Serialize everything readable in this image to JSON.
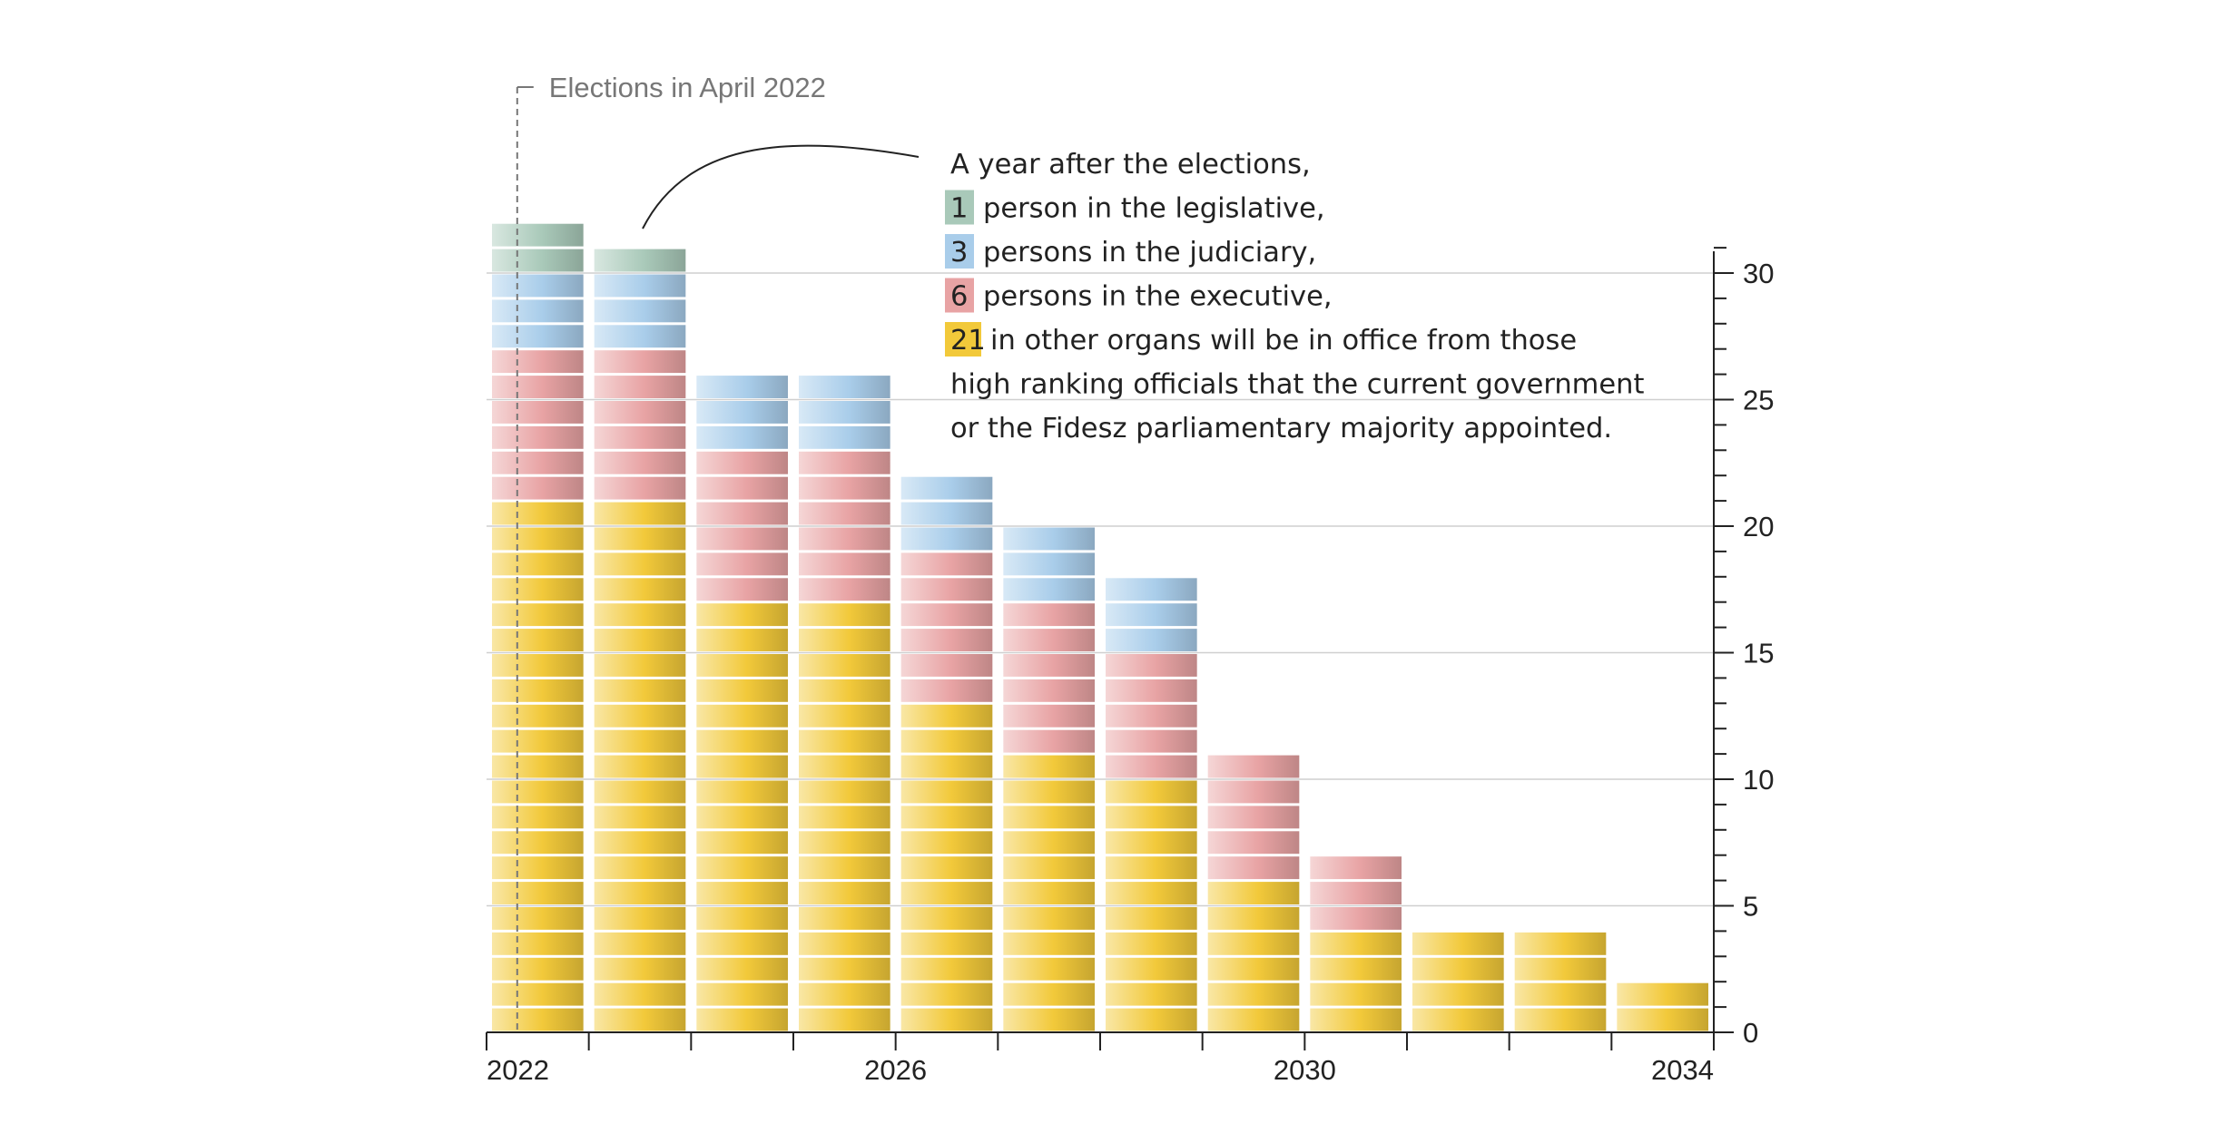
{
  "chart_data": {
    "type": "bar",
    "stacked": true,
    "unit_blocks": true,
    "x": [
      2022,
      2023,
      2024,
      2025,
      2026,
      2027,
      2028,
      2029,
      2030,
      2031,
      2032,
      2033
    ],
    "series": [
      {
        "key": "other",
        "color": "#f2c93a",
        "values": [
          21,
          21,
          17,
          17,
          13,
          11,
          10,
          6,
          4,
          4,
          4,
          2
        ]
      },
      {
        "key": "executive",
        "color": "#e8a3a4",
        "values": [
          6,
          6,
          6,
          6,
          6,
          6,
          5,
          5,
          3,
          0,
          0,
          0
        ]
      },
      {
        "key": "judiciary",
        "color": "#a9cdea",
        "values": [
          3,
          3,
          3,
          3,
          3,
          3,
          3,
          0,
          0,
          0,
          0,
          0
        ]
      },
      {
        "key": "legislative",
        "color": "#a9c9b9",
        "values": [
          2,
          1,
          0,
          0,
          0,
          0,
          0,
          0,
          0,
          0,
          0,
          0
        ]
      }
    ],
    "x_ticks": [
      "2022",
      "2026",
      "2030",
      "2034"
    ],
    "y_ticks": [
      0,
      5,
      10,
      15,
      20,
      25,
      30
    ],
    "ylim": [
      0,
      30
    ],
    "grid": true,
    "y_axis_side": "right",
    "election_marker": {
      "label": "Elections in April 2022"
    },
    "annotation": {
      "intro": "A year after the elections,",
      "lines": [
        {
          "badge": "1",
          "color": "#a9c9b9",
          "text": "person in the legislative,"
        },
        {
          "badge": "3",
          "color": "#a9cdea",
          "text": "persons in the judiciary,"
        },
        {
          "badge": "6",
          "color": "#e8a3a4",
          "text": "persons in the executive,"
        },
        {
          "badge": "21",
          "color": "#f2c93a",
          "text": "in other organs will be in office from those"
        }
      ],
      "trailing": [
        "high ranking officials that the current government",
        "or the Fidesz parliamentary majority appointed."
      ]
    }
  }
}
